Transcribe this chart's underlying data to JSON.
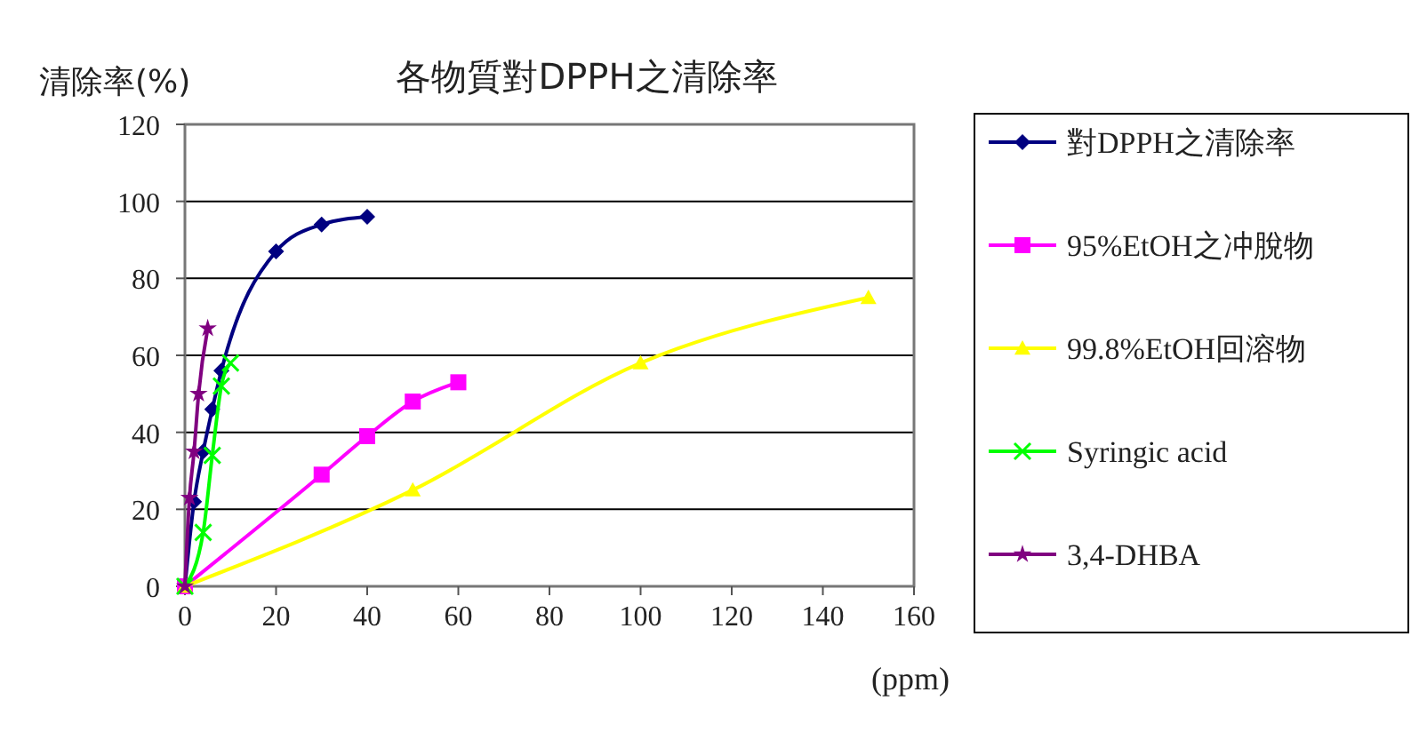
{
  "chart_data": {
    "type": "line",
    "title": "各物質對DPPH之清除率",
    "ylabel": "清除率(%)",
    "xlabel": "(ppm)",
    "xlim": [
      0,
      160
    ],
    "xticks": [
      0,
      20,
      40,
      60,
      80,
      100,
      120,
      140,
      160
    ],
    "ylim": [
      0,
      120
    ],
    "yticks": [
      0,
      20,
      40,
      60,
      80,
      100,
      120
    ],
    "grid": "y",
    "legend": "right",
    "series": [
      {
        "name": "對DPPH之清除率",
        "color": "#000080",
        "marker": "diamond",
        "x": [
          0,
          2,
          4,
          6,
          8,
          20,
          30,
          40
        ],
        "values": [
          0,
          22,
          35,
          46,
          56,
          87,
          94,
          96
        ]
      },
      {
        "name": "95%EtOH之冲脫物",
        "color": "#ff00ff",
        "marker": "square",
        "x": [
          0,
          30,
          40,
          50,
          60
        ],
        "values": [
          0,
          29,
          39,
          48,
          53
        ]
      },
      {
        "name": "99.8%EtOH回溶物",
        "color": "#ffff00",
        "marker": "triangle",
        "x": [
          0,
          50,
          100,
          150
        ],
        "values": [
          0,
          25,
          58,
          75
        ]
      },
      {
        "name": "Syringic acid",
        "color": "#00ff00",
        "marker": "cross",
        "x": [
          0,
          4,
          6,
          8,
          10
        ],
        "values": [
          0,
          14,
          34,
          52,
          58
        ]
      },
      {
        "name": "3,4-DHBA",
        "color": "#800080",
        "marker": "star",
        "x": [
          0,
          1,
          2,
          3,
          5
        ],
        "values": [
          0,
          23,
          35,
          50,
          67
        ]
      }
    ]
  }
}
